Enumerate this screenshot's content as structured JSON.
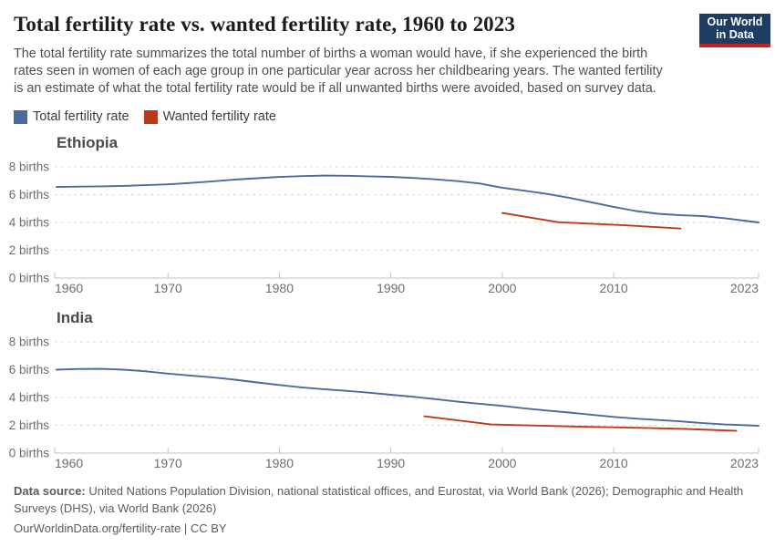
{
  "header": {
    "title": "Total fertility rate vs. wanted fertility rate, 1960 to 2023",
    "subtitle_lines": [
      "The total fertility rate summarizes the total number of births a woman would have, if she experienced the birth",
      "rates seen in women of each age group in one particular year across her childbearing years. The wanted fertility",
      "is an estimate of what the total fertility rate would be if all unwanted births were avoided, based on survey data."
    ]
  },
  "logo": {
    "line1": "Our World",
    "line2": "in Data",
    "bg_color": "#1d3d63",
    "bar_color": "#c5231b"
  },
  "legend": [
    {
      "label": "Total fertility rate",
      "color": "#4C6A9C"
    },
    {
      "label": "Wanted fertility rate",
      "color": "#BC3A1C"
    }
  ],
  "chart_data": [
    {
      "type": "line",
      "title": "Ethiopia",
      "xlabel": "",
      "ylabel": "births",
      "xlim": [
        1960,
        2023
      ],
      "ylim": [
        0,
        8
      ],
      "xticks": [
        1960,
        1970,
        1980,
        1990,
        2000,
        2010,
        2023
      ],
      "yticks": [
        0,
        2,
        4,
        6,
        8
      ],
      "ytick_format": "{} births",
      "grid": true,
      "legend_position": "top-of-page",
      "series": [
        {
          "name": "Total fertility rate",
          "color": "#4C6A9C",
          "points": [
            [
              1960,
              6.55
            ],
            [
              1962,
              6.58
            ],
            [
              1964,
              6.6
            ],
            [
              1966,
              6.63
            ],
            [
              1968,
              6.68
            ],
            [
              1970,
              6.74
            ],
            [
              1972,
              6.84
            ],
            [
              1974,
              6.96
            ],
            [
              1976,
              7.08
            ],
            [
              1978,
              7.18
            ],
            [
              1980,
              7.27
            ],
            [
              1982,
              7.33
            ],
            [
              1984,
              7.37
            ],
            [
              1986,
              7.36
            ],
            [
              1988,
              7.32
            ],
            [
              1990,
              7.28
            ],
            [
              1992,
              7.2
            ],
            [
              1994,
              7.1
            ],
            [
              1996,
              6.97
            ],
            [
              1998,
              6.8
            ],
            [
              2000,
              6.5
            ],
            [
              2002,
              6.28
            ],
            [
              2004,
              6.05
            ],
            [
              2006,
              5.78
            ],
            [
              2008,
              5.45
            ],
            [
              2010,
              5.12
            ],
            [
              2012,
              4.82
            ],
            [
              2014,
              4.62
            ],
            [
              2016,
              4.52
            ],
            [
              2018,
              4.46
            ],
            [
              2020,
              4.3
            ],
            [
              2022,
              4.1
            ],
            [
              2023,
              4.0
            ]
          ]
        },
        {
          "name": "Wanted fertility rate",
          "color": "#BC3A1C",
          "points": [
            [
              2000,
              4.68
            ],
            [
              2005,
              4.02
            ],
            [
              2011,
              3.8
            ],
            [
              2016,
              3.56
            ]
          ]
        }
      ]
    },
    {
      "type": "line",
      "title": "India",
      "xlabel": "",
      "ylabel": "births",
      "xlim": [
        1960,
        2023
      ],
      "ylim": [
        0,
        8
      ],
      "xticks": [
        1960,
        1970,
        1980,
        1990,
        2000,
        2010,
        2023
      ],
      "yticks": [
        0,
        2,
        4,
        6,
        8
      ],
      "ytick_format": "{} births",
      "grid": true,
      "legend_position": "top-of-page",
      "series": [
        {
          "name": "Total fertility rate",
          "color": "#4C6A9C",
          "points": [
            [
              1960,
              6.0
            ],
            [
              1962,
              6.05
            ],
            [
              1964,
              6.06
            ],
            [
              1966,
              6.0
            ],
            [
              1968,
              5.88
            ],
            [
              1970,
              5.72
            ],
            [
              1972,
              5.58
            ],
            [
              1974,
              5.45
            ],
            [
              1976,
              5.28
            ],
            [
              1978,
              5.08
            ],
            [
              1980,
              4.9
            ],
            [
              1982,
              4.73
            ],
            [
              1984,
              4.6
            ],
            [
              1986,
              4.48
            ],
            [
              1988,
              4.35
            ],
            [
              1990,
              4.2
            ],
            [
              1992,
              4.05
            ],
            [
              1994,
              3.88
            ],
            [
              1996,
              3.7
            ],
            [
              1998,
              3.55
            ],
            [
              2000,
              3.4
            ],
            [
              2002,
              3.22
            ],
            [
              2004,
              3.06
            ],
            [
              2006,
              2.92
            ],
            [
              2008,
              2.76
            ],
            [
              2010,
              2.6
            ],
            [
              2012,
              2.48
            ],
            [
              2014,
              2.38
            ],
            [
              2016,
              2.28
            ],
            [
              2018,
              2.16
            ],
            [
              2020,
              2.06
            ],
            [
              2022,
              2.0
            ],
            [
              2023,
              1.97
            ]
          ]
        },
        {
          "name": "Wanted fertility rate",
          "color": "#BC3A1C",
          "points": [
            [
              1993,
              2.65
            ],
            [
              1999,
              2.06
            ],
            [
              2006,
              1.92
            ],
            [
              2011,
              1.84
            ],
            [
              2016,
              1.75
            ],
            [
              2021,
              1.6
            ]
          ]
        }
      ]
    }
  ],
  "footer": {
    "source_label": "Data source:",
    "source_line1": " United Nations Population Division, national statistical offices, and Eurostat, via World Bank (2026); Demographic and Health",
    "source_line2": "Surveys (DHS), via World Bank (2026)",
    "link_line": "OurWorldinData.org/fertility-rate | CC BY"
  }
}
